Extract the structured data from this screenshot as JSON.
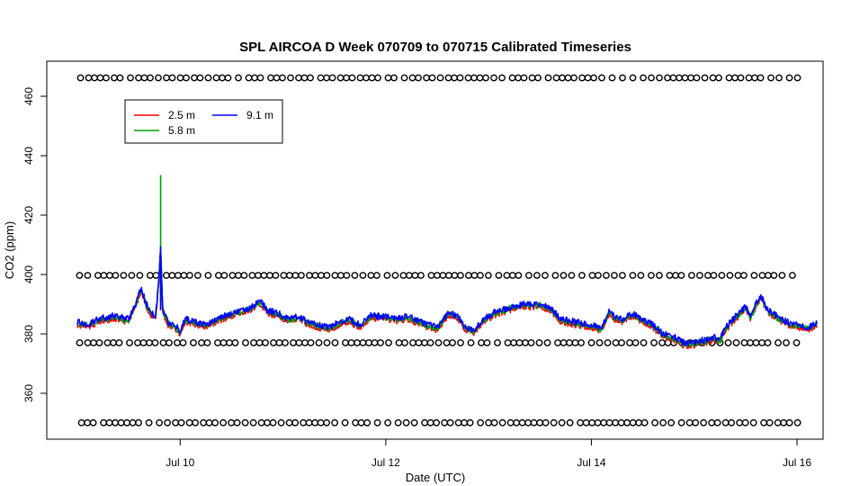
{
  "chart_data": {
    "type": "line",
    "title": "SPL AIRCOA D  Week 070709 to 070715  Calibrated Timeseries",
    "xlabel": "Date (UTC)",
    "ylabel": "CO2 (ppm)",
    "x_unit": "days since Jul 9 00:00 UTC",
    "xlim": [
      0.0,
      7.2
    ],
    "ylim": [
      345,
      470
    ],
    "x_ticks": [
      {
        "x": 1,
        "label": "Jul 10"
      },
      {
        "x": 3,
        "label": "Jul 12"
      },
      {
        "x": 5,
        "label": "Jul 14"
      },
      {
        "x": 7,
        "label": "Jul 16"
      }
    ],
    "y_ticks": [
      {
        "y": 360,
        "label": "360"
      },
      {
        "y": 380,
        "label": "380"
      },
      {
        "y": 400,
        "label": "400"
      },
      {
        "y": 420,
        "label": "420"
      },
      {
        "y": 440,
        "label": "440"
      },
      {
        "y": 460,
        "label": "460"
      }
    ],
    "legend": {
      "placement": "top-left",
      "entries": [
        {
          "label": "2.5 m",
          "color": "#ff0000"
        },
        {
          "label": "5.8 m",
          "color": "#00a000"
        },
        {
          "label": "9.1 m",
          "color": "#0000ff"
        }
      ]
    },
    "series": [
      {
        "name": "2.5 m",
        "color": "#ff0000",
        "offset": -0.9
      },
      {
        "name": "5.8 m",
        "color": "#00a000",
        "offset": -0.4
      },
      {
        "name": "9.1 m",
        "color": "#0000ff",
        "offset": 0,
        "points": [
          [
            0.0,
            384
          ],
          [
            0.1,
            383
          ],
          [
            0.2,
            385
          ],
          [
            0.35,
            386
          ],
          [
            0.5,
            385
          ],
          [
            0.58,
            391
          ],
          [
            0.62,
            396
          ],
          [
            0.66,
            391
          ],
          [
            0.72,
            387
          ],
          [
            0.76,
            386
          ],
          [
            0.79,
            397
          ],
          [
            0.81,
            409
          ],
          [
            0.83,
            388
          ],
          [
            0.88,
            384
          ],
          [
            0.95,
            383
          ],
          [
            1.0,
            381
          ],
          [
            1.05,
            385
          ],
          [
            1.15,
            384
          ],
          [
            1.25,
            383
          ],
          [
            1.35,
            385
          ],
          [
            1.5,
            387
          ],
          [
            1.7,
            389
          ],
          [
            1.78,
            391
          ],
          [
            1.85,
            388
          ],
          [
            1.95,
            387
          ],
          [
            2.05,
            385
          ],
          [
            2.15,
            386
          ],
          [
            2.25,
            384
          ],
          [
            2.35,
            383
          ],
          [
            2.45,
            382
          ],
          [
            2.55,
            384
          ],
          [
            2.65,
            385
          ],
          [
            2.75,
            383
          ],
          [
            2.85,
            386
          ],
          [
            3.0,
            386
          ],
          [
            3.1,
            385
          ],
          [
            3.2,
            386
          ],
          [
            3.35,
            384
          ],
          [
            3.5,
            382
          ],
          [
            3.6,
            387
          ],
          [
            3.7,
            386
          ],
          [
            3.78,
            382
          ],
          [
            3.85,
            381
          ],
          [
            3.95,
            385
          ],
          [
            4.05,
            387
          ],
          [
            4.2,
            389
          ],
          [
            4.35,
            390
          ],
          [
            4.5,
            390
          ],
          [
            4.6,
            389
          ],
          [
            4.7,
            385
          ],
          [
            4.85,
            384
          ],
          [
            5.0,
            383
          ],
          [
            5.1,
            382
          ],
          [
            5.18,
            388
          ],
          [
            5.22,
            386
          ],
          [
            5.3,
            385
          ],
          [
            5.4,
            387
          ],
          [
            5.5,
            385
          ],
          [
            5.6,
            383
          ],
          [
            5.7,
            380
          ],
          [
            5.8,
            379
          ],
          [
            5.9,
            377
          ],
          [
            6.0,
            377
          ],
          [
            6.1,
            378
          ],
          [
            6.2,
            379
          ],
          [
            6.25,
            378
          ],
          [
            6.3,
            382
          ],
          [
            6.4,
            386
          ],
          [
            6.5,
            389
          ],
          [
            6.55,
            386
          ],
          [
            6.6,
            390
          ],
          [
            6.65,
            393
          ],
          [
            6.7,
            389
          ],
          [
            6.8,
            386
          ],
          [
            6.9,
            384
          ],
          [
            7.0,
            383
          ],
          [
            7.1,
            382
          ],
          [
            7.2,
            384
          ]
        ]
      }
    ],
    "flag_rows": [
      {
        "name": "top",
        "y": 466.2,
        "marker": "open-circle"
      },
      {
        "name": "upper-middle",
        "y": 399.7,
        "marker": "open-circle"
      },
      {
        "name": "lower-middle",
        "y": 377.0,
        "marker": "open-circle"
      },
      {
        "name": "bottom",
        "y": 350.1,
        "marker": "open-circle"
      }
    ],
    "annotations": [
      {
        "type": "spike",
        "series": "5.8 m",
        "x": 0.81,
        "y": 433.5
      },
      {
        "type": "spike",
        "series": "9.1 m",
        "x": 0.81,
        "y": 409.5
      }
    ]
  }
}
